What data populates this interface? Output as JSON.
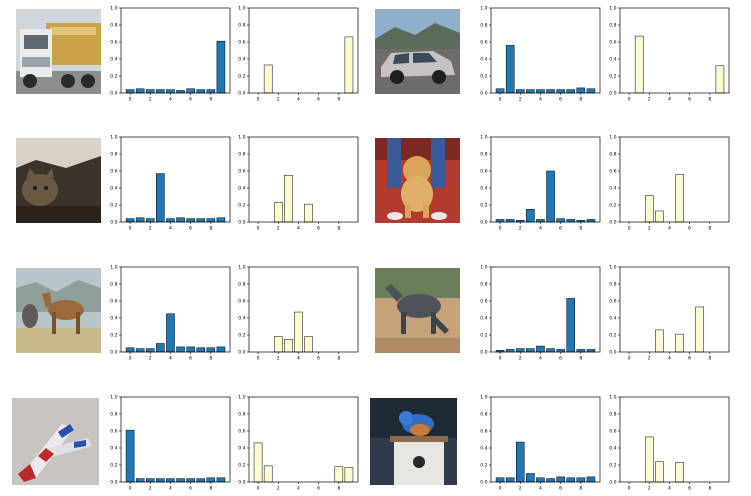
{
  "colors": {
    "blue_bar": "#1f77b4",
    "yellow_bar": "#fdfbd2",
    "bar_edge": "#000000",
    "axis": "#000000"
  },
  "chart_data": [
    {
      "type": "bar",
      "row": 0,
      "col": 0,
      "image_icon": "truck-image-icon",
      "series_color": "#1f77b4",
      "categories": [
        0,
        1,
        2,
        3,
        4,
        5,
        6,
        7,
        8,
        9
      ],
      "values": [
        0.04,
        0.05,
        0.04,
        0.04,
        0.04,
        0.03,
        0.05,
        0.04,
        0.04,
        0.61
      ],
      "ylim": [
        0,
        1.0
      ],
      "yticks": [
        "0.0",
        "0.2",
        "0.4",
        "0.6",
        "0.8",
        "1.0"
      ],
      "xticks": [
        "0",
        "2",
        "4",
        "6",
        "8"
      ]
    },
    {
      "type": "bar",
      "row": 0,
      "col": 1,
      "series_color": "#fdfbd2",
      "categories": [
        0,
        1,
        2,
        3,
        4,
        5,
        6,
        7,
        8,
        9
      ],
      "values": [
        0,
        0.33,
        0,
        0,
        0,
        0,
        0,
        0,
        0,
        0.66
      ],
      "ylim": [
        0,
        1.0
      ],
      "yticks": [
        "0.0",
        "0.2",
        "0.4",
        "0.6",
        "0.8",
        "1.0"
      ],
      "xticks": [
        "0",
        "2",
        "4",
        "6",
        "8"
      ]
    },
    {
      "type": "bar",
      "row": 0,
      "col": 2,
      "image_icon": "car-image-icon",
      "series_color": "#1f77b4",
      "categories": [
        0,
        1,
        2,
        3,
        4,
        5,
        6,
        7,
        8,
        9
      ],
      "values": [
        0.05,
        0.56,
        0.04,
        0.04,
        0.04,
        0.04,
        0.04,
        0.04,
        0.06,
        0.05
      ],
      "ylim": [
        0,
        1.0
      ],
      "yticks": [
        "0.0",
        "0.2",
        "0.4",
        "0.6",
        "0.8",
        "1.0"
      ],
      "xticks": [
        "0",
        "2",
        "4",
        "6",
        "8"
      ]
    },
    {
      "type": "bar",
      "row": 0,
      "col": 3,
      "series_color": "#fdfbd2",
      "categories": [
        0,
        1,
        2,
        3,
        4,
        5,
        6,
        7,
        8,
        9
      ],
      "values": [
        0,
        0.67,
        0,
        0,
        0,
        0,
        0,
        0,
        0,
        0.32
      ],
      "ylim": [
        0,
        1.0
      ],
      "yticks": [
        "0.0",
        "0.2",
        "0.4",
        "0.6",
        "0.8",
        "1.0"
      ],
      "xticks": [
        "0",
        "2",
        "4",
        "6",
        "8"
      ]
    },
    {
      "type": "bar",
      "row": 1,
      "col": 0,
      "image_icon": "cat-image-icon",
      "series_color": "#1f77b4",
      "categories": [
        0,
        1,
        2,
        3,
        4,
        5,
        6,
        7,
        8,
        9
      ],
      "values": [
        0.04,
        0.05,
        0.04,
        0.57,
        0.04,
        0.05,
        0.04,
        0.04,
        0.04,
        0.05
      ],
      "ylim": [
        0,
        1.0
      ],
      "yticks": [
        "0.0",
        "0.2",
        "0.4",
        "0.6",
        "0.8",
        "1.0"
      ],
      "xticks": [
        "0",
        "2",
        "4",
        "6",
        "8"
      ]
    },
    {
      "type": "bar",
      "row": 1,
      "col": 1,
      "series_color": "#fdfbd2",
      "categories": [
        0,
        1,
        2,
        3,
        4,
        5,
        6,
        7,
        8,
        9
      ],
      "values": [
        0,
        0,
        0.23,
        0.55,
        0,
        0.21,
        0,
        0,
        0,
        0
      ],
      "ylim": [
        0,
        1.0
      ],
      "yticks": [
        "0.0",
        "0.2",
        "0.4",
        "0.6",
        "0.8",
        "1.0"
      ],
      "xticks": [
        "0",
        "2",
        "4",
        "6",
        "8"
      ]
    },
    {
      "type": "bar",
      "row": 1,
      "col": 2,
      "image_icon": "dog-image-icon",
      "series_color": "#1f77b4",
      "categories": [
        0,
        1,
        2,
        3,
        4,
        5,
        6,
        7,
        8,
        9
      ],
      "values": [
        0.03,
        0.03,
        0.02,
        0.15,
        0.03,
        0.6,
        0.04,
        0.03,
        0.02,
        0.03
      ],
      "ylim": [
        0,
        1.0
      ],
      "yticks": [
        "0.0",
        "0.2",
        "0.4",
        "0.6",
        "0.8",
        "1.0"
      ],
      "xticks": [
        "0",
        "2",
        "4",
        "6",
        "8"
      ]
    },
    {
      "type": "bar",
      "row": 1,
      "col": 3,
      "series_color": "#fdfbd2",
      "categories": [
        0,
        1,
        2,
        3,
        4,
        5,
        6,
        7,
        8,
        9
      ],
      "values": [
        0,
        0,
        0.31,
        0.13,
        0,
        0.56,
        0,
        0,
        0,
        0
      ],
      "ylim": [
        0,
        1.0
      ],
      "yticks": [
        "0.0",
        "0.2",
        "0.4",
        "0.6",
        "0.8",
        "1.0"
      ],
      "xticks": [
        "0",
        "2",
        "4",
        "6",
        "8"
      ]
    },
    {
      "type": "bar",
      "row": 2,
      "col": 0,
      "image_icon": "deer-image-icon",
      "series_color": "#1f77b4",
      "categories": [
        0,
        1,
        2,
        3,
        4,
        5,
        6,
        7,
        8,
        9
      ],
      "values": [
        0.05,
        0.04,
        0.04,
        0.1,
        0.45,
        0.06,
        0.06,
        0.05,
        0.05,
        0.06
      ],
      "ylim": [
        0,
        1.0
      ],
      "yticks": [
        "0.0",
        "0.2",
        "0.4",
        "0.6",
        "0.8",
        "1.0"
      ],
      "xticks": [
        "0",
        "2",
        "4",
        "6",
        "8"
      ]
    },
    {
      "type": "bar",
      "row": 2,
      "col": 1,
      "series_color": "#fdfbd2",
      "categories": [
        0,
        1,
        2,
        3,
        4,
        5,
        6,
        7,
        8,
        9
      ],
      "values": [
        0,
        0,
        0.18,
        0.15,
        0.47,
        0.18,
        0,
        0,
        0,
        0
      ],
      "ylim": [
        0,
        1.0
      ],
      "yticks": [
        "0.0",
        "0.2",
        "0.4",
        "0.6",
        "0.8",
        "1.0"
      ],
      "xticks": [
        "0",
        "2",
        "4",
        "6",
        "8"
      ]
    },
    {
      "type": "bar",
      "row": 2,
      "col": 2,
      "image_icon": "horse-image-icon",
      "series_color": "#1f77b4",
      "categories": [
        0,
        1,
        2,
        3,
        4,
        5,
        6,
        7,
        8,
        9
      ],
      "values": [
        0.02,
        0.03,
        0.04,
        0.04,
        0.07,
        0.04,
        0.03,
        0.63,
        0.03,
        0.03
      ],
      "ylim": [
        0,
        1.0
      ],
      "yticks": [
        "0.0",
        "0.2",
        "0.4",
        "0.6",
        "0.8",
        "1.0"
      ],
      "xticks": [
        "0",
        "2",
        "4",
        "6",
        "8"
      ]
    },
    {
      "type": "bar",
      "row": 2,
      "col": 3,
      "series_color": "#fdfbd2",
      "categories": [
        0,
        1,
        2,
        3,
        4,
        5,
        6,
        7,
        8,
        9
      ],
      "values": [
        0,
        0,
        0,
        0.26,
        0,
        0.21,
        0,
        0.53,
        0,
        0
      ],
      "ylim": [
        0,
        1.0
      ],
      "yticks": [
        "0.0",
        "0.2",
        "0.4",
        "0.6",
        "0.8",
        "1.0"
      ],
      "xticks": [
        "0",
        "2",
        "4",
        "6",
        "8"
      ]
    },
    {
      "type": "bar",
      "row": 3,
      "col": 0,
      "image_icon": "airplane-image-icon",
      "series_color": "#1f77b4",
      "categories": [
        0,
        1,
        2,
        3,
        4,
        5,
        6,
        7,
        8,
        9
      ],
      "values": [
        0.61,
        0.04,
        0.04,
        0.04,
        0.04,
        0.04,
        0.04,
        0.04,
        0.05,
        0.05
      ],
      "ylim": [
        0,
        1.0
      ],
      "yticks": [
        "0.0",
        "0.2",
        "0.4",
        "0.6",
        "0.8",
        "1.0"
      ],
      "xticks": [
        "0",
        "2",
        "4",
        "6",
        "8"
      ]
    },
    {
      "type": "bar",
      "row": 3,
      "col": 1,
      "series_color": "#fdfbd2",
      "categories": [
        0,
        1,
        2,
        3,
        4,
        5,
        6,
        7,
        8,
        9
      ],
      "values": [
        0.46,
        0.19,
        0,
        0,
        0,
        0,
        0,
        0,
        0.18,
        0.17
      ],
      "ylim": [
        0,
        1.0
      ],
      "yticks": [
        "0.0",
        "0.2",
        "0.4",
        "0.6",
        "0.8",
        "1.0"
      ],
      "xticks": [
        "0",
        "2",
        "4",
        "6",
        "8"
      ]
    },
    {
      "type": "bar",
      "row": 3,
      "col": 2,
      "image_icon": "bird-image-icon",
      "series_color": "#1f77b4",
      "categories": [
        0,
        1,
        2,
        3,
        4,
        5,
        6,
        7,
        8,
        9
      ],
      "values": [
        0.05,
        0.05,
        0.47,
        0.1,
        0.05,
        0.04,
        0.06,
        0.05,
        0.05,
        0.06
      ],
      "ylim": [
        0,
        1.0
      ],
      "yticks": [
        "0.0",
        "0.2",
        "0.4",
        "0.6",
        "0.8",
        "1.0"
      ],
      "xticks": [
        "0",
        "2",
        "4",
        "6",
        "8"
      ]
    },
    {
      "type": "bar",
      "row": 3,
      "col": 3,
      "series_color": "#fdfbd2",
      "categories": [
        0,
        1,
        2,
        3,
        4,
        5,
        6,
        7,
        8,
        9
      ],
      "values": [
        0,
        0,
        0.53,
        0.24,
        0,
        0.23,
        0,
        0,
        0,
        0
      ],
      "ylim": [
        0,
        1.0
      ],
      "yticks": [
        "0.0",
        "0.2",
        "0.4",
        "0.6",
        "0.8",
        "1.0"
      ],
      "xticks": [
        "0",
        "2",
        "4",
        "6",
        "8"
      ]
    }
  ]
}
